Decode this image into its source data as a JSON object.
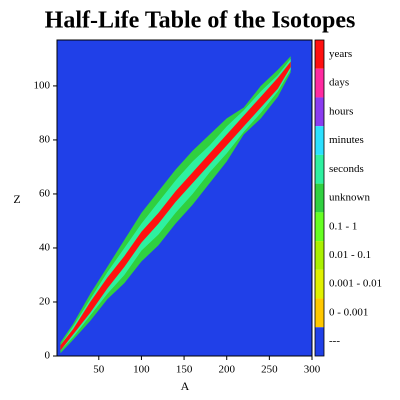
{
  "chart_data": {
    "type": "heatmap",
    "title": "Half-Life Table of the Isotopes",
    "x_label": "A",
    "y_label": "Z",
    "xlim": [
      1,
      300
    ],
    "xticks": [
      50,
      100,
      150,
      200,
      250,
      300
    ],
    "ylim": [
      0,
      117
    ],
    "yticks": [
      0,
      20,
      40,
      60,
      80,
      100
    ],
    "legend": [
      {
        "label": "years",
        "color": "#ff1010",
        "x": [
          5,
          20,
          40,
          60,
          80,
          100,
          120,
          140,
          160,
          180,
          200,
          220,
          240,
          260,
          275
        ],
        "low": [
          2,
          8,
          16,
          25,
          33,
          42,
          49,
          57,
          64,
          71,
          78,
          85,
          92,
          99,
          107
        ],
        "high": [
          4,
          10,
          20,
          29,
          37,
          46,
          53,
          61,
          68,
          75,
          82,
          89,
          96,
          103,
          109
        ]
      },
      {
        "label": "days",
        "color": "#ff2aa0"
      },
      {
        "label": "hours",
        "color": "#8a3cf0"
      },
      {
        "label": "minutes",
        "color": "#2ce0ff"
      },
      {
        "label": "seconds",
        "color": "#2ef0a0",
        "x": [
          5,
          20,
          40,
          60,
          80,
          100,
          120,
          140,
          160,
          180,
          200,
          220,
          240,
          260,
          275
        ],
        "low": [
          2,
          7,
          15,
          23,
          30,
          39,
          45,
          53,
          60,
          68,
          75,
          83,
          90,
          98,
          106
        ],
        "high": [
          4,
          11,
          21,
          31,
          40,
          49,
          57,
          65,
          72,
          78,
          85,
          91,
          98,
          104,
          110
        ]
      },
      {
        "label": "unknown",
        "color": "#30d040",
        "x": [
          5,
          20,
          40,
          60,
          80,
          100,
          120,
          140,
          160,
          180,
          200,
          220,
          240,
          260,
          275
        ],
        "low": [
          1,
          6,
          13,
          21,
          27,
          35,
          41,
          49,
          56,
          64,
          72,
          82,
          88,
          96,
          105
        ],
        "high": [
          5,
          12,
          23,
          33,
          43,
          53,
          61,
          69,
          76,
          82,
          88,
          92,
          100,
          106,
          111
        ]
      },
      {
        "label": "0.1 - 1",
        "color": "#66ff22"
      },
      {
        "label": "0.01 - 0.1",
        "color": "#aaf000"
      },
      {
        "label": "0.001 - 0.01",
        "color": "#e0f000"
      },
      {
        "label": "0 - 0.001",
        "color": "#ffc800"
      },
      {
        "label": "---",
        "color": "#2040e8"
      }
    ]
  }
}
